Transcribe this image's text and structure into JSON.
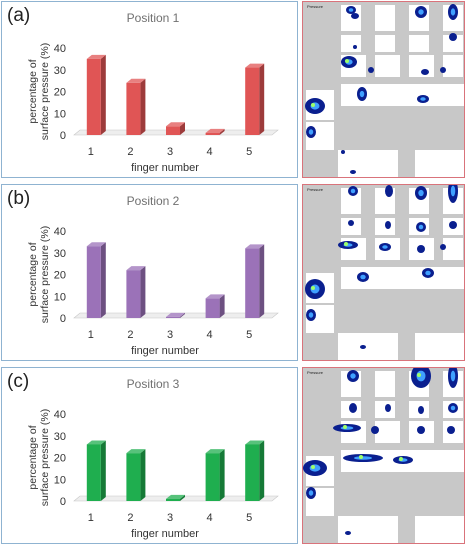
{
  "panels": [
    {
      "label": "(a)",
      "map_label": "Pressure",
      "chart_data": {
        "type": "bar",
        "title": "Position 1",
        "xlabel": "finger number",
        "ylabel": "percentage of surface pressure (%)",
        "categories": [
          "1",
          "2",
          "3",
          "4",
          "5"
        ],
        "values": [
          35,
          24,
          4,
          1,
          31
        ],
        "ylim": [
          0,
          40
        ],
        "yticks": [
          0,
          10,
          20,
          30,
          40
        ],
        "grid": false,
        "color": "#e05555"
      }
    },
    {
      "label": "(b)",
      "map_label": "Pressure",
      "chart_data": {
        "type": "bar",
        "title": "Position 2",
        "xlabel": "finger number",
        "ylabel": "percentage of surface pressure (%)",
        "categories": [
          "1",
          "2",
          "3",
          "4",
          "5"
        ],
        "values": [
          33,
          22,
          0.5,
          9,
          32
        ],
        "ylim": [
          0,
          40
        ],
        "yticks": [
          0,
          10,
          20,
          30,
          40
        ],
        "grid": false,
        "color": "#9b72b8"
      }
    },
    {
      "label": "(c)",
      "map_label": "Pressure",
      "chart_data": {
        "type": "bar",
        "title": "Position 3",
        "xlabel": "finger number",
        "ylabel": "percentage of surface pressure (%)",
        "categories": [
          "1",
          "2",
          "3",
          "4",
          "5"
        ],
        "values": [
          26,
          22,
          1,
          22,
          26
        ],
        "ylim": [
          0,
          40
        ],
        "yticks": [
          0,
          10,
          20,
          30,
          40
        ],
        "grid": false,
        "color": "#1fae4f"
      }
    }
  ]
}
